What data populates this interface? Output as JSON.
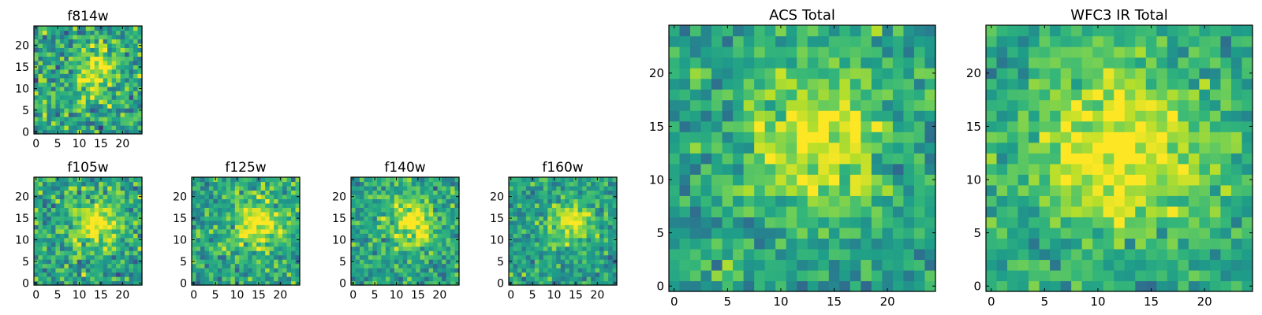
{
  "chart_data": [
    {
      "type": "heatmap",
      "title": "f814w",
      "x_ticks": [
        "0",
        "5",
        "10",
        "15",
        "20"
      ],
      "y_ticks": [
        "0",
        "5",
        "10",
        "15",
        "20"
      ],
      "xlim": [
        -0.5,
        24.5
      ],
      "ylim": [
        -0.5,
        24.5
      ],
      "grid_size": 25,
      "colormap": "viridis",
      "source_center": [
        14,
        14
      ],
      "source_width": 3.5,
      "noise": 0.32,
      "seed": 11
    },
    {
      "type": "heatmap",
      "title": "f105w",
      "x_ticks": [
        "0",
        "5",
        "10",
        "15",
        "20"
      ],
      "y_ticks": [
        "0",
        "5",
        "10",
        "15",
        "20"
      ],
      "xlim": [
        -0.5,
        24.5
      ],
      "ylim": [
        -0.5,
        24.5
      ],
      "grid_size": 25,
      "colormap": "viridis",
      "source_center": [
        14,
        14
      ],
      "source_width": 4.0,
      "noise": 0.28,
      "seed": 23
    },
    {
      "type": "heatmap",
      "title": "f125w",
      "x_ticks": [
        "0",
        "5",
        "10",
        "15",
        "20"
      ],
      "y_ticks": [
        "0",
        "5",
        "10",
        "15",
        "20"
      ],
      "xlim": [
        -0.5,
        24.5
      ],
      "ylim": [
        -0.5,
        24.5
      ],
      "grid_size": 25,
      "colormap": "viridis",
      "source_center": [
        15,
        14
      ],
      "source_width": 4.2,
      "noise": 0.26,
      "seed": 37
    },
    {
      "type": "heatmap",
      "title": "f140w",
      "x_ticks": [
        "0",
        "5",
        "10",
        "15",
        "20"
      ],
      "y_ticks": [
        "0",
        "5",
        "10",
        "15",
        "20"
      ],
      "xlim": [
        -0.5,
        24.5
      ],
      "ylim": [
        -0.5,
        24.5
      ],
      "grid_size": 25,
      "colormap": "viridis",
      "source_center": [
        14,
        14
      ],
      "source_width": 3.8,
      "noise": 0.24,
      "seed": 41
    },
    {
      "type": "heatmap",
      "title": "f160w",
      "x_ticks": [
        "0",
        "5",
        "10",
        "15",
        "20"
      ],
      "y_ticks": [
        "0",
        "5",
        "10",
        "15",
        "20"
      ],
      "xlim": [
        -0.5,
        24.5
      ],
      "ylim": [
        -0.5,
        24.5
      ],
      "grid_size": 25,
      "colormap": "viridis",
      "source_center": [
        14,
        14
      ],
      "source_width": 3.2,
      "noise": 0.22,
      "seed": 59
    },
    {
      "type": "heatmap",
      "title": "ACS Total",
      "x_ticks": [
        "0",
        "5",
        "10",
        "15",
        "20"
      ],
      "y_ticks": [
        "0",
        "5",
        "10",
        "15",
        "20"
      ],
      "xlim": [
        -0.5,
        24.5
      ],
      "ylim": [
        -0.5,
        24.5
      ],
      "grid_size": 25,
      "colormap": "viridis",
      "source_center": [
        13,
        14
      ],
      "source_width": 4.5,
      "noise": 0.22,
      "seed": 67
    },
    {
      "type": "heatmap",
      "title": "WFC3 IR Total",
      "x_ticks": [
        "0",
        "5",
        "10",
        "15",
        "20"
      ],
      "y_ticks": [
        "0",
        "5",
        "10",
        "15",
        "20"
      ],
      "xlim": [
        -0.5,
        24.5
      ],
      "ylim": [
        -0.5,
        24.5
      ],
      "grid_size": 25,
      "colormap": "viridis",
      "source_center": [
        12,
        13
      ],
      "source_width": 6.0,
      "noise": 0.2,
      "seed": 83
    }
  ]
}
